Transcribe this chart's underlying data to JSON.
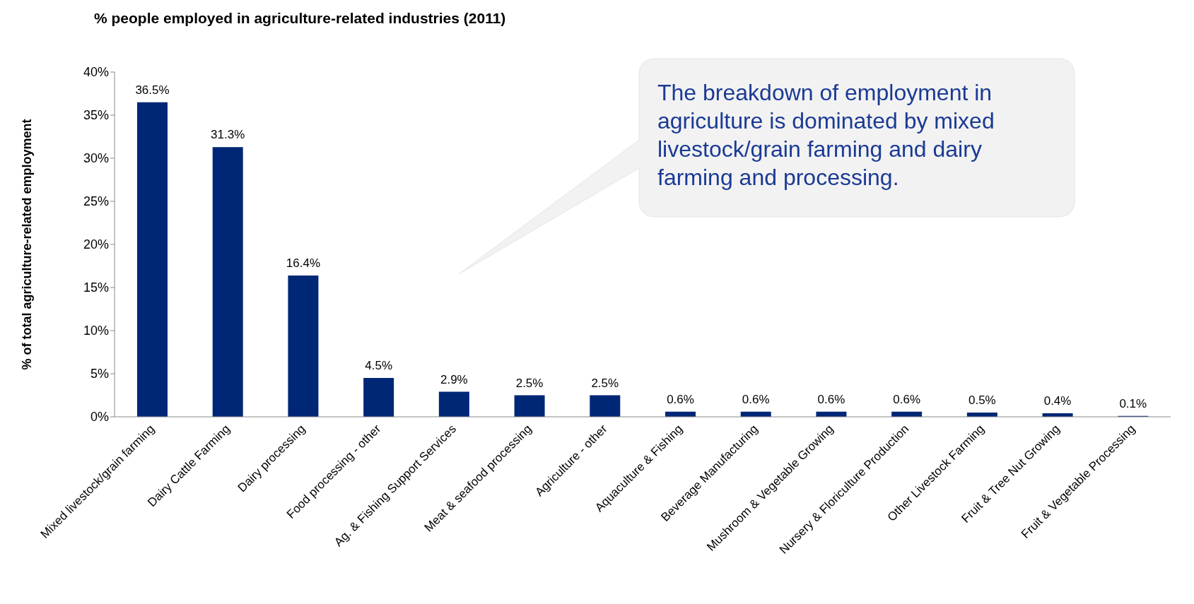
{
  "chart_data": {
    "type": "bar",
    "title": "% people employed in agriculture-related industries (2011)",
    "ylabel": "% of total agriculture-related employment",
    "categories": [
      "Mixed livestock/grain farming",
      "Dairy Cattle Farming",
      "Dairy processing",
      "Food processing - other",
      "Ag. & Fishing Support Services",
      "Meat & seafood processing",
      "Agriculture - other",
      "Aquaculture & Fishing",
      "Beverage Manufacturing",
      "Mushroom & Vegetable Growing",
      "Nursery & Floriculture Production",
      "Other Livestock Farming",
      "Fruit & Tree Nut Growing",
      "Fruit & Vegetable Processing"
    ],
    "values": [
      36.5,
      31.3,
      16.4,
      4.5,
      2.9,
      2.5,
      2.5,
      0.6,
      0.6,
      0.6,
      0.6,
      0.5,
      0.4,
      0.1
    ],
    "value_labels": [
      "36.5%",
      "31.3%",
      "16.4%",
      "4.5%",
      "2.9%",
      "2.5%",
      "2.5%",
      "0.6%",
      "0.6%",
      "0.6%",
      "0.6%",
      "0.5%",
      "0.4%",
      "0.1%"
    ],
    "color": "#002776",
    "ylim": [
      0,
      40
    ],
    "yticks": [
      {
        "value": 0,
        "label": "0%"
      },
      {
        "value": 5,
        "label": "5%"
      },
      {
        "value": 10,
        "label": "10%"
      },
      {
        "value": 15,
        "label": "15%"
      },
      {
        "value": 20,
        "label": "20%"
      },
      {
        "value": 25,
        "label": "25%"
      },
      {
        "value": 30,
        "label": "30%"
      },
      {
        "value": 35,
        "label": "35%"
      },
      {
        "value": 40,
        "label": "40%"
      }
    ],
    "grid": false,
    "legend": false,
    "annotations": [
      "The breakdown of employment in agriculture is dominated by mixed livestock/grain farming and dairy farming  and processing."
    ]
  }
}
